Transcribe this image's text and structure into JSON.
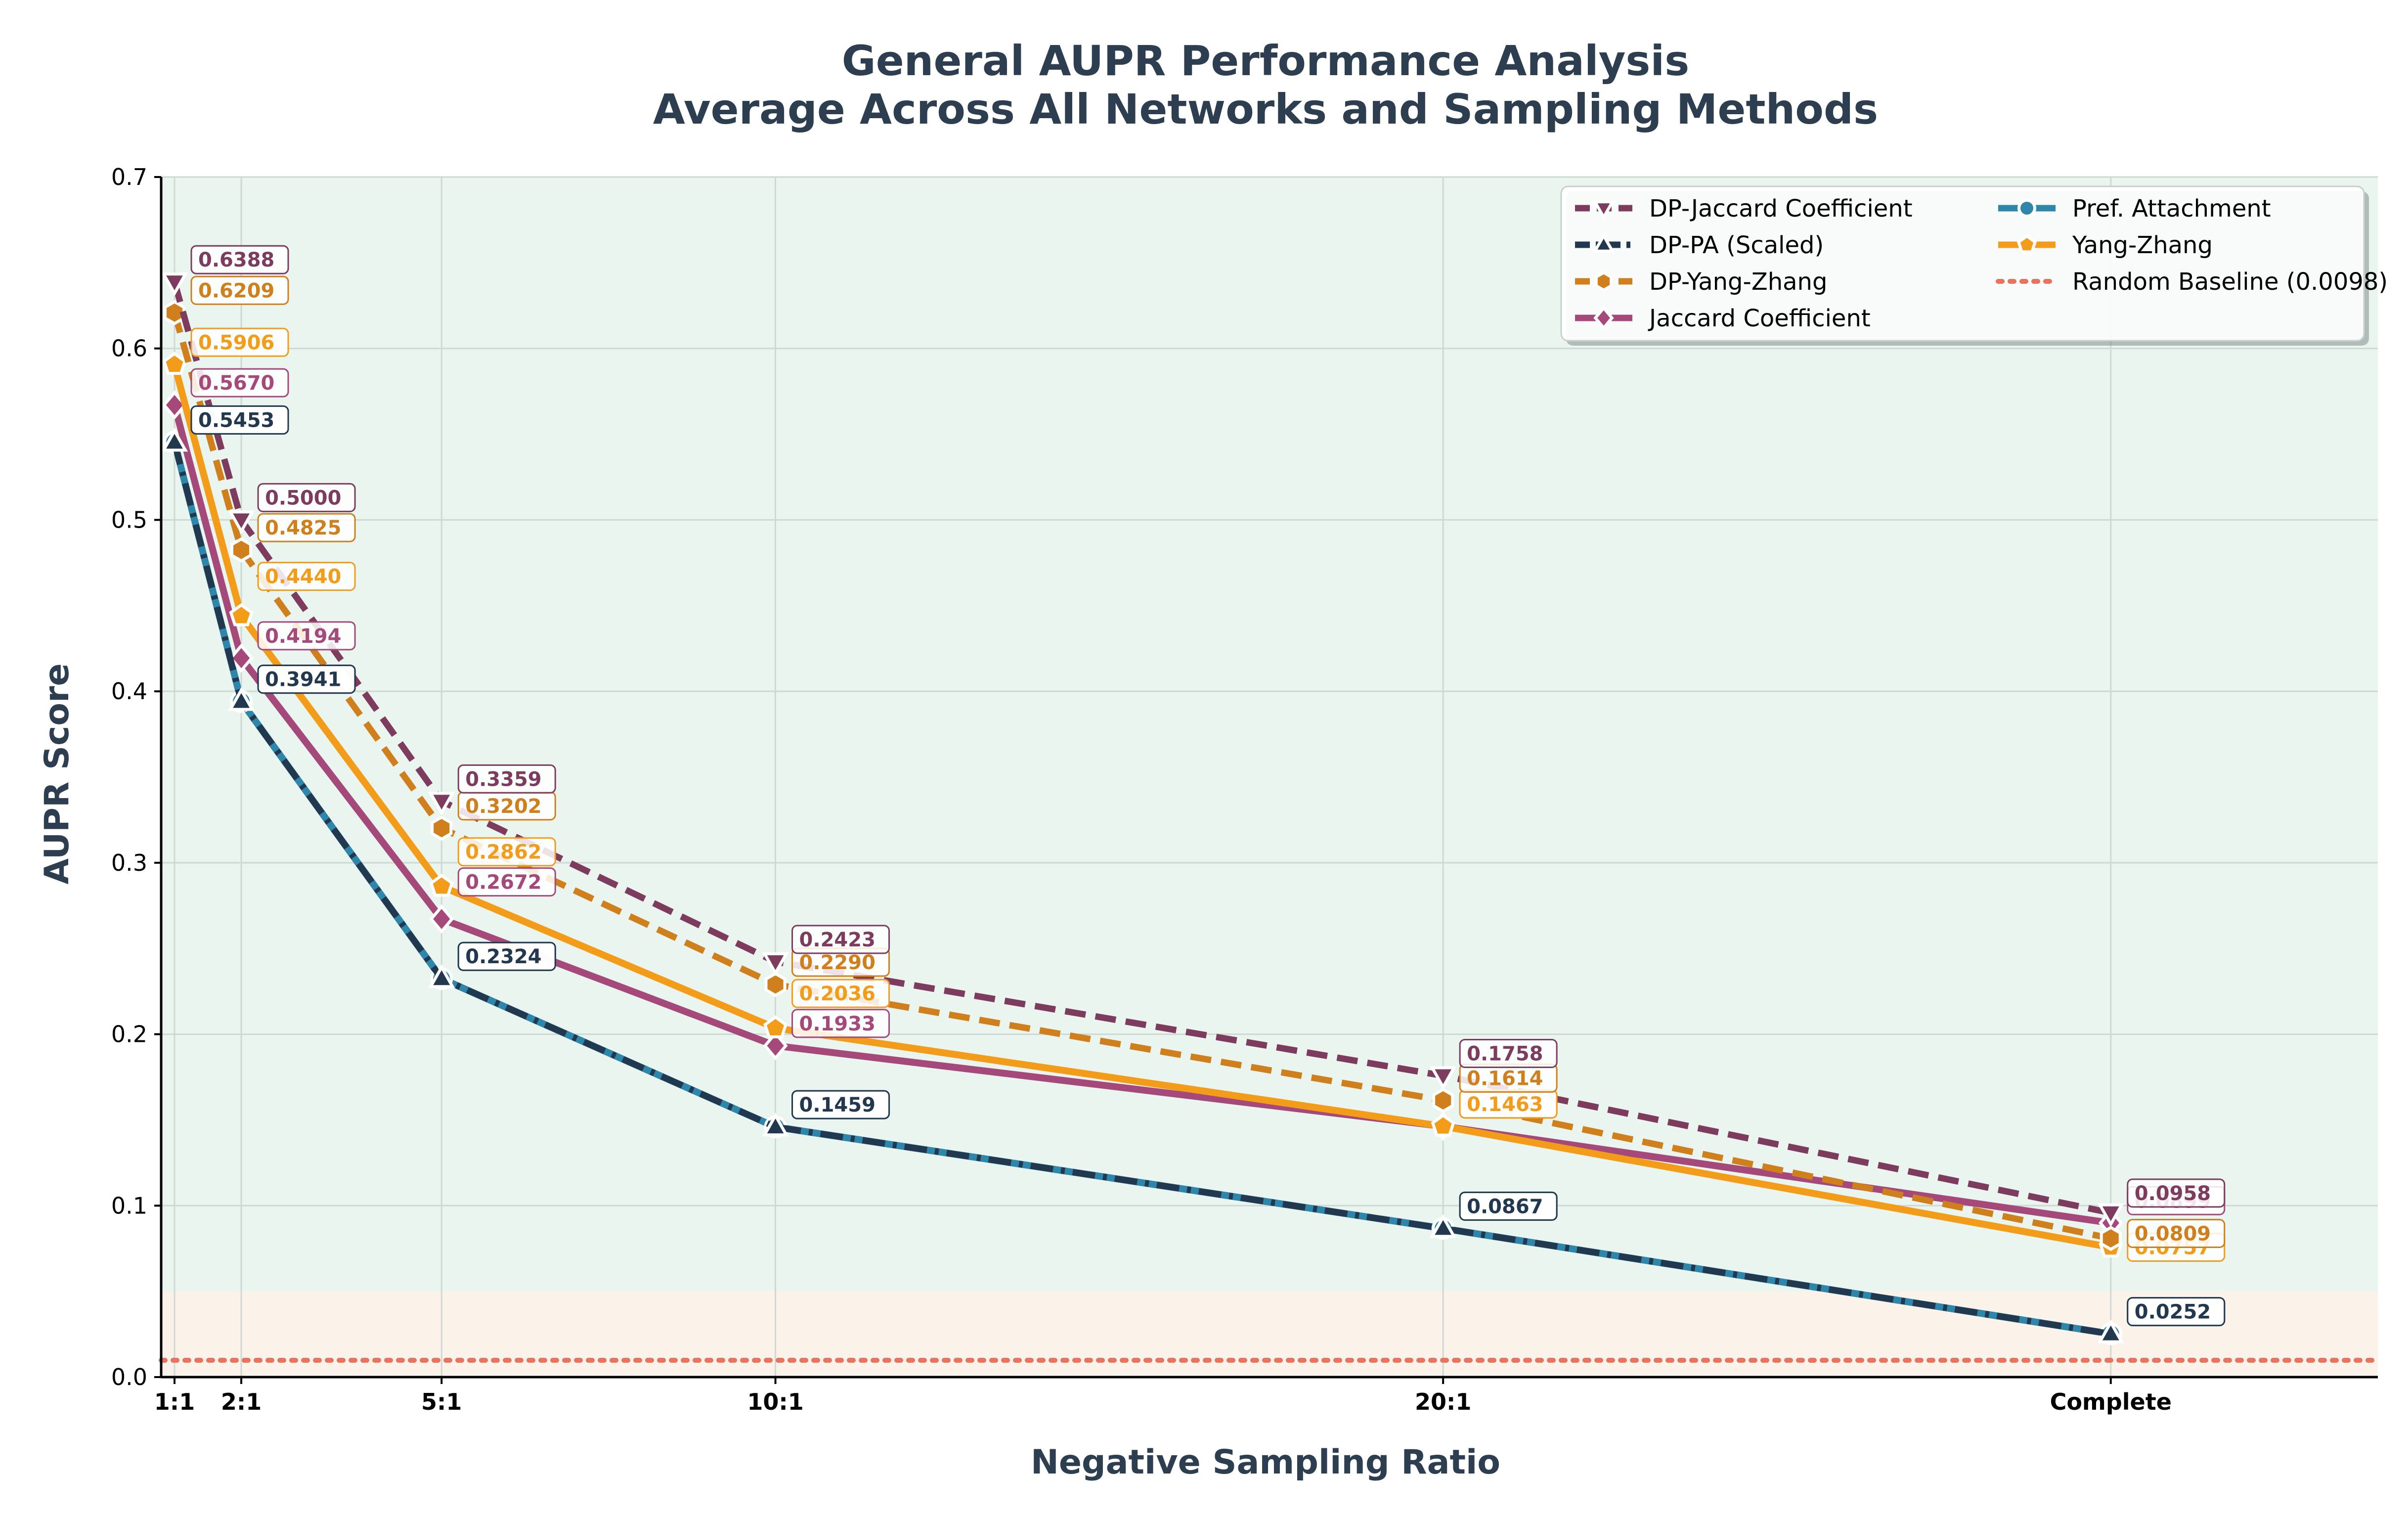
{
  "chart_data": {
    "type": "line",
    "title": [
      "General AUPR Performance Analysis",
      "Average Across All Networks and Sampling Methods"
    ],
    "xlabel": "Negative Sampling Ratio",
    "ylabel": "AUPR Score",
    "categories": [
      "1:1",
      "2:1",
      "5:1",
      "10:1",
      "20:1",
      "Complete"
    ],
    "x": [
      1,
      2,
      5,
      10,
      20,
      30
    ],
    "xlim": [
      0.8,
      34
    ],
    "ylim": [
      0,
      0.7
    ],
    "yticks": [
      "0.0",
      "0.1",
      "0.2",
      "0.3",
      "0.4",
      "0.5",
      "0.6",
      "0.7"
    ],
    "grid": true,
    "legend_position": "top-right",
    "bands": [
      {
        "from": 0.05,
        "to": 0.7,
        "color": "#eaf5ef"
      },
      {
        "from": 0,
        "to": 0.05,
        "color": "#fbf3ea"
      }
    ],
    "baseline": {
      "name": "Random Baseline (0.0098)",
      "value": 0.0098,
      "color": "#e8735f"
    },
    "series": [
      {
        "name": "DP-Jaccard Coefficient",
        "color": "#7d3c5e",
        "dash": "dashed",
        "marker": "triangle-down",
        "values": [
          0.6388,
          0.5,
          0.3359,
          0.2423,
          0.1758,
          0.0958
        ],
        "labels": [
          "0.6388",
          "0.5000",
          "0.3359",
          "0.2423",
          "0.1758",
          "0.0958"
        ]
      },
      {
        "name": "DP-PA (Scaled)",
        "color": "#22384e",
        "dash": "dashdot",
        "marker": "triangle-up",
        "values": [
          0.5453,
          0.3941,
          0.2324,
          0.1459,
          0.0867,
          0.0252
        ],
        "labels": [
          "0.5453",
          "0.3941",
          "0.2324",
          "0.1459",
          "0.0867",
          "0.0252"
        ]
      },
      {
        "name": "DP-Yang-Zhang",
        "color": "#cf7f1b",
        "dash": "dashed",
        "marker": "hexagon",
        "values": [
          0.6209,
          0.4825,
          0.3202,
          0.229,
          0.1614,
          0.0809
        ],
        "labels": [
          "0.6209",
          "0.4825",
          "0.3202",
          "0.2290",
          "0.1614",
          "0.0809"
        ]
      },
      {
        "name": "Jaccard Coefficient",
        "color": "#a4497a",
        "dash": "solid",
        "marker": "diamond",
        "values": [
          0.567,
          0.4194,
          0.2672,
          0.1933,
          0.1463,
          0.0899
        ],
        "labels": [
          "0.5670",
          "0.4194",
          "0.2672",
          "0.1933",
          "0.1463",
          "0.0899"
        ]
      },
      {
        "name": "Pref. Attachment",
        "color": "#2e86ab",
        "dash": "solid",
        "marker": "circle",
        "values": [
          0.5453,
          0.3941,
          0.2324,
          0.1459,
          0.0867,
          0.0252
        ],
        "labels": [
          "0.5453",
          "0.3941",
          "0.2324",
          "0.1459",
          "0.0867",
          "0.0252"
        ]
      },
      {
        "name": "Yang-Zhang",
        "color": "#f39c1a",
        "dash": "solid",
        "marker": "pentagon",
        "values": [
          0.5906,
          0.444,
          0.2862,
          0.2036,
          0.1463,
          0.0757
        ],
        "labels": [
          "0.5906",
          "0.4440",
          "0.2862",
          "0.2036",
          "0.1463",
          "0.0757"
        ]
      }
    ]
  }
}
